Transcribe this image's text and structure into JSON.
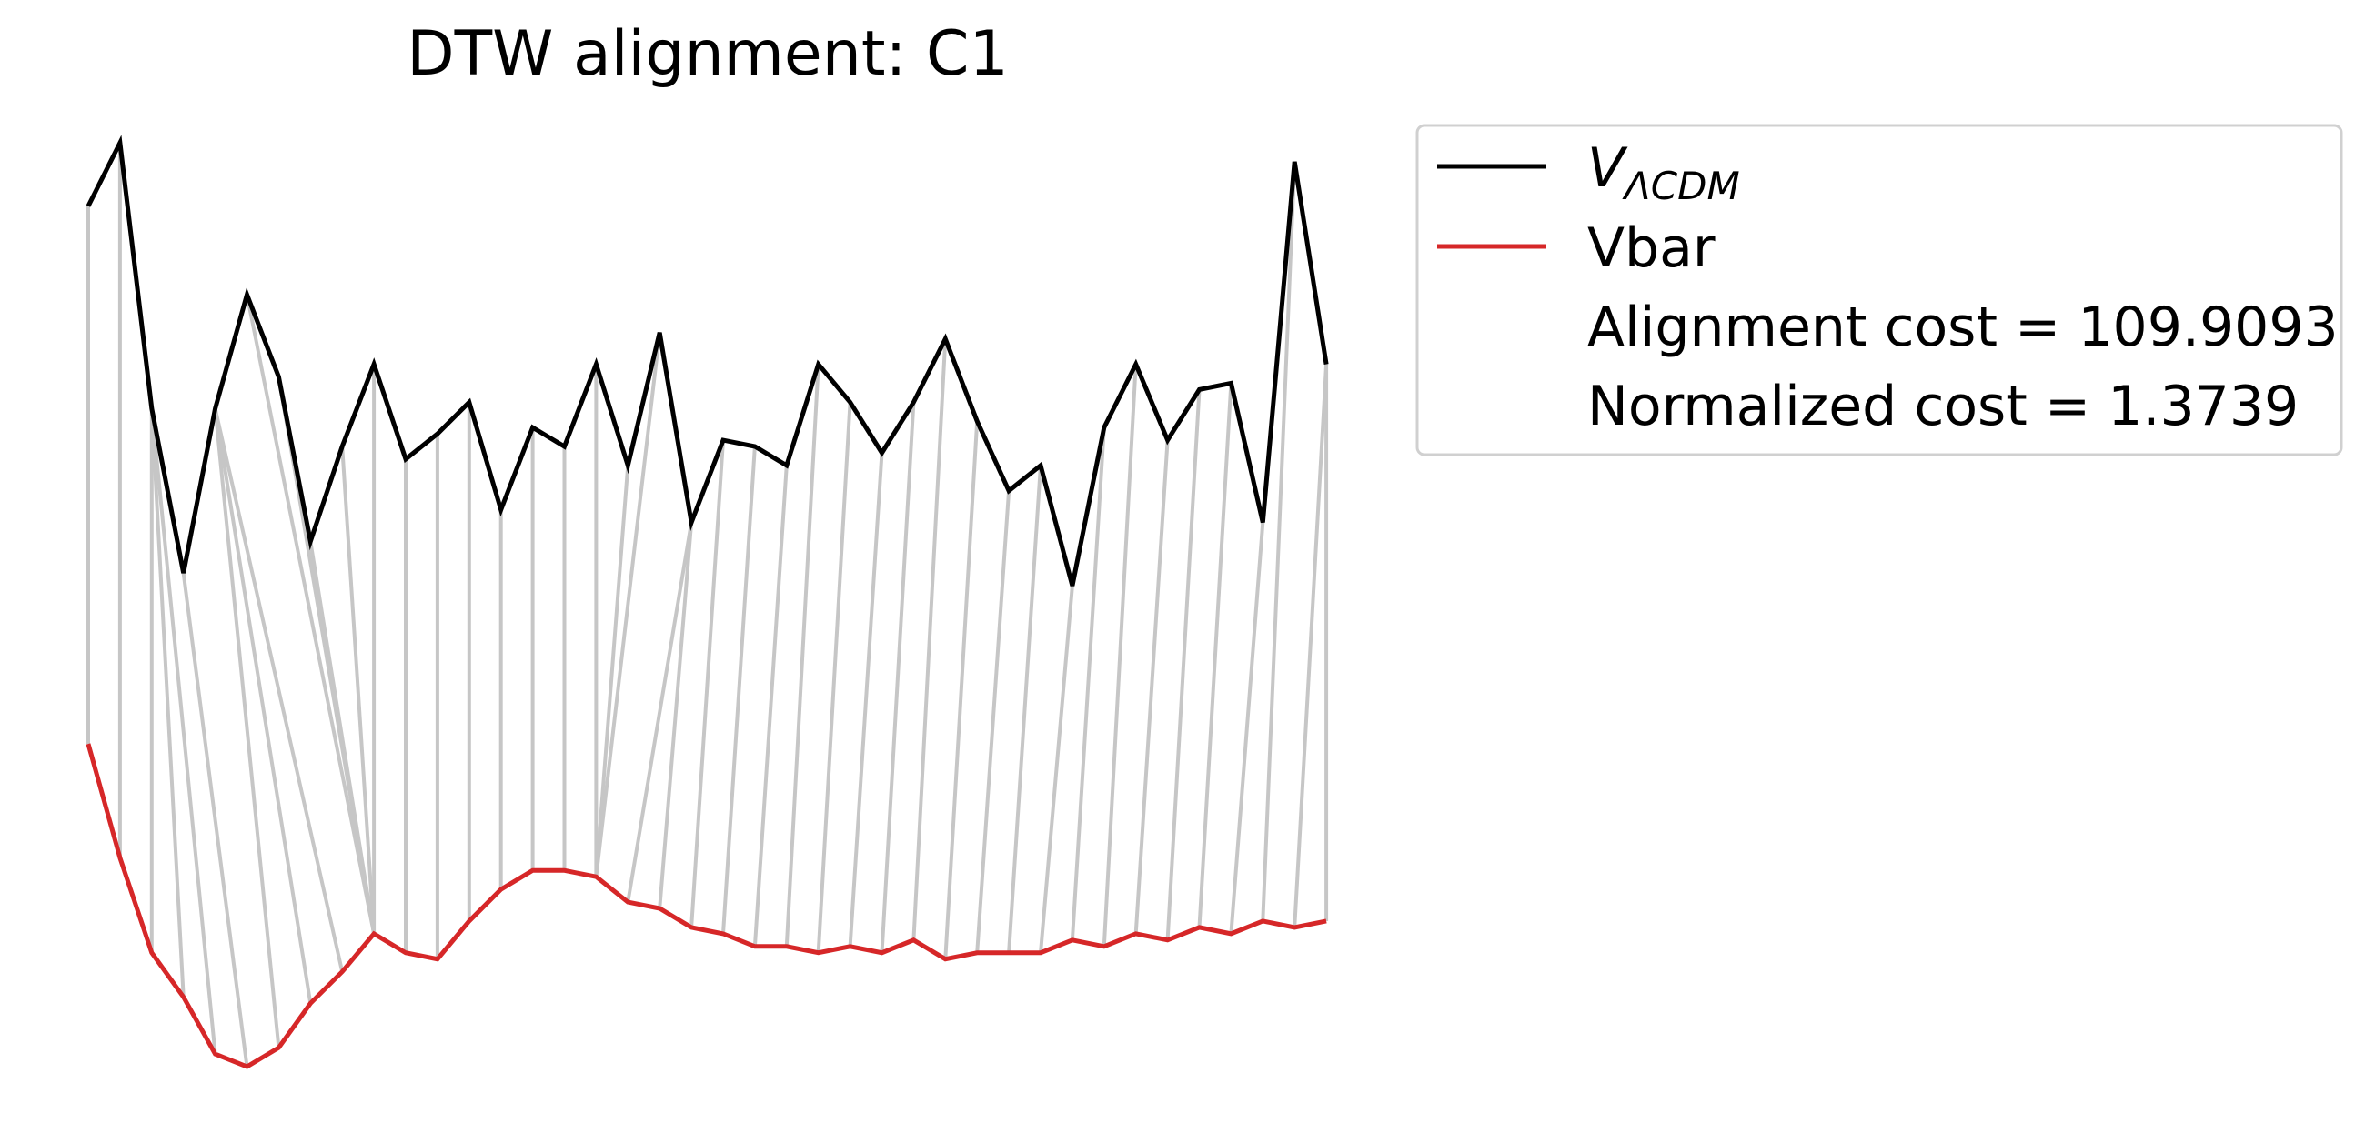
{
  "chart_data": {
    "type": "line",
    "title": "DTW alignment: C1",
    "xlabel": "",
    "ylabel": "",
    "axes_visible": false,
    "grid": false,
    "legend_position": "upper-right, outside plot",
    "series": [
      {
        "name": "V_ΛCDM",
        "legend_main": "V",
        "legend_sub": "ΛCDM",
        "color": "#000000",
        "x": [
          0,
          1,
          2,
          3,
          4,
          5,
          6,
          7,
          8,
          9,
          10,
          11,
          12,
          13,
          14,
          15,
          16,
          17,
          18,
          19,
          20,
          21,
          22,
          23,
          24,
          25,
          26,
          27,
          28,
          29,
          30,
          31,
          32,
          33,
          34,
          35,
          36,
          37,
          38,
          39
        ],
        "values": [
          1.45,
          1.55,
          1.13,
          0.87,
          1.13,
          1.31,
          1.18,
          0.92,
          1.07,
          1.2,
          1.05,
          1.09,
          1.14,
          0.97,
          1.1,
          1.07,
          1.2,
          1.04,
          1.25,
          0.95,
          1.08,
          1.07,
          1.04,
          1.2,
          1.14,
          1.06,
          1.14,
          1.24,
          1.11,
          1.0,
          1.04,
          0.85,
          1.1,
          1.2,
          1.08,
          1.16,
          1.17,
          0.95,
          1.52,
          1.2
        ]
      },
      {
        "name": "Vbar",
        "color": "#d62728",
        "x": [
          0,
          1,
          2,
          3,
          4,
          5,
          6,
          7,
          8,
          9,
          10,
          11,
          12,
          13,
          14,
          15,
          16,
          17,
          18,
          19,
          20,
          21,
          22,
          23,
          24,
          25,
          26,
          27,
          28,
          29,
          30,
          31,
          32,
          33,
          34,
          35,
          36,
          37,
          38,
          39
        ],
        "values": [
          0.6,
          0.42,
          0.27,
          0.2,
          0.11,
          0.09,
          0.12,
          0.19,
          0.24,
          0.3,
          0.27,
          0.26,
          0.32,
          0.37,
          0.4,
          0.4,
          0.39,
          0.35,
          0.34,
          0.31,
          0.3,
          0.28,
          0.28,
          0.27,
          0.28,
          0.27,
          0.29,
          0.26,
          0.27,
          0.27,
          0.27,
          0.29,
          0.28,
          0.3,
          0.29,
          0.31,
          0.3,
          0.32,
          0.31,
          0.32
        ]
      }
    ],
    "alignment_color": "#c6c6c6",
    "alignment_pairs": [
      [
        0,
        0
      ],
      [
        1,
        1
      ],
      [
        2,
        2
      ],
      [
        2,
        3
      ],
      [
        2,
        4
      ],
      [
        3,
        5
      ],
      [
        4,
        6
      ],
      [
        4,
        7
      ],
      [
        4,
        8
      ],
      [
        5,
        9
      ],
      [
        6,
        9
      ],
      [
        7,
        9
      ],
      [
        8,
        9
      ],
      [
        9,
        9
      ],
      [
        10,
        10
      ],
      [
        11,
        11
      ],
      [
        12,
        12
      ],
      [
        13,
        13
      ],
      [
        14,
        14
      ],
      [
        15,
        15
      ],
      [
        16,
        16
      ],
      [
        17,
        16
      ],
      [
        18,
        16
      ],
      [
        19,
        17
      ],
      [
        19,
        18
      ],
      [
        20,
        19
      ],
      [
        21,
        20
      ],
      [
        22,
        21
      ],
      [
        23,
        22
      ],
      [
        24,
        23
      ],
      [
        25,
        24
      ],
      [
        26,
        25
      ],
      [
        27,
        26
      ],
      [
        28,
        27
      ],
      [
        29,
        28
      ],
      [
        30,
        29
      ],
      [
        31,
        30
      ],
      [
        32,
        31
      ],
      [
        33,
        32
      ],
      [
        34,
        33
      ],
      [
        35,
        34
      ],
      [
        36,
        35
      ],
      [
        37,
        36
      ],
      [
        38,
        37
      ],
      [
        39,
        38
      ],
      [
        39,
        39
      ]
    ],
    "legend": [
      {
        "label": "V_ΛCDM",
        "color": "#000000"
      },
      {
        "label": "Vbar",
        "color": "#d62728"
      },
      {
        "label": "Alignment cost = 109.9093"
      },
      {
        "label": "Normalized cost = 1.3739"
      }
    ]
  }
}
